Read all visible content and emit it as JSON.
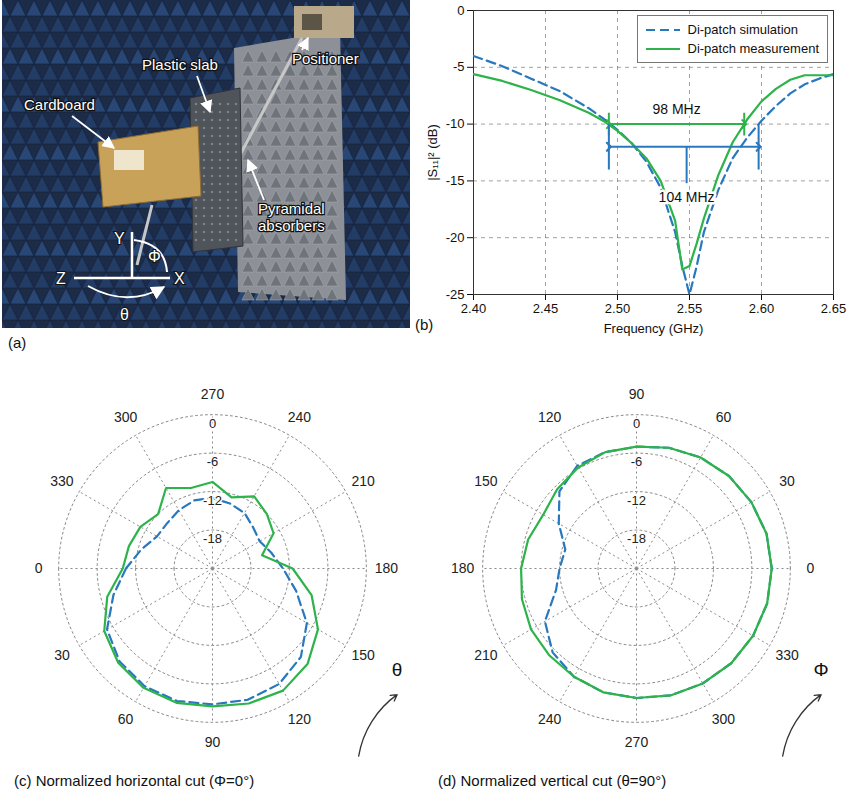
{
  "chart_data": [
    {
      "type": "photo",
      "title": "(a)",
      "labels": [
        "Cardboard",
        "Plastic slab",
        "Positioner",
        "Pyramidal absorbers"
      ],
      "axis_labels": [
        "Y",
        "Z",
        "X",
        "Φ",
        "θ"
      ]
    },
    {
      "type": "line",
      "title": "(b)",
      "x_label": "Frequency (GHz)",
      "y_label": "|S₁₁|² (dB)",
      "x": [
        2.4,
        2.42,
        2.44,
        2.46,
        2.48,
        2.49,
        2.5,
        2.51,
        2.52,
        2.53,
        2.54,
        2.545,
        2.55,
        2.555,
        2.56,
        2.57,
        2.58,
        2.59,
        2.6,
        2.61,
        2.62,
        2.63,
        2.64,
        2.65
      ],
      "series": [
        {
          "name": "Di-patch simulation",
          "color": "#2878c0",
          "line_style": "dashed",
          "values": [
            -4.0,
            -4.9,
            -6.0,
            -7.1,
            -8.6,
            -9.5,
            -10.5,
            -11.7,
            -13.3,
            -15.6,
            -19.5,
            -22.5,
            -25.0,
            -22.5,
            -19.5,
            -15.8,
            -13.0,
            -11.2,
            -9.7,
            -8.4,
            -7.3,
            -6.5,
            -6.0,
            -5.6
          ]
        },
        {
          "name": "Di-patch measurement",
          "color": "#2db34a",
          "line_style": "solid",
          "values": [
            -5.6,
            -6.2,
            -7.0,
            -7.9,
            -9.0,
            -9.7,
            -10.6,
            -11.7,
            -13.0,
            -15.0,
            -18.5,
            -22.8,
            -22.5,
            -20.5,
            -18.3,
            -14.5,
            -11.6,
            -9.6,
            -8.0,
            -6.9,
            -6.1,
            -5.7,
            -5.7,
            -5.7
          ]
        }
      ],
      "xlim": [
        2.4,
        2.65
      ],
      "xticks": [
        {
          "value": 2.4,
          "label": "2.40"
        },
        {
          "value": 2.45,
          "label": "2.45"
        },
        {
          "value": 2.5,
          "label": "2.50"
        },
        {
          "value": 2.55,
          "label": "2.55"
        },
        {
          "value": 2.6,
          "label": "2.60"
        },
        {
          "value": 2.65,
          "label": "2.65"
        }
      ],
      "ylim": [
        -25,
        0
      ],
      "yticks": [
        0,
        -5,
        -10,
        -15,
        -20,
        -25
      ],
      "grid": true,
      "legend": "top-right",
      "annotations": [
        {
          "text": "98 MHz",
          "color": "#2db34a",
          "x_start": 2.494,
          "x_end": 2.588,
          "y": -10,
          "y_bracket": [
            -9,
            -11
          ],
          "text_x": 2.541,
          "text_y": -8.7
        },
        {
          "text": "104 MHz",
          "color": "#2878c0",
          "x_start": 2.494,
          "x_end": 2.598,
          "y": -12,
          "y_bracket": [
            -10,
            -14
          ],
          "y_pointer": [
            -12,
            -15.2
          ],
          "text_x": 2.548,
          "text_y": -16.5
        }
      ]
    },
    {
      "type": "polar",
      "title": "(c) Normalized horizontal cut (Φ=0°)",
      "x": [
        0,
        15,
        30,
        45,
        60,
        75,
        90,
        105,
        120,
        135,
        150,
        165,
        180,
        195,
        210,
        225,
        240,
        255,
        270,
        285,
        300,
        315,
        330,
        345
      ],
      "series": [
        {
          "name": "Di-patch simulation",
          "color": "#2878c0",
          "line_style": "dashed",
          "values": [
            -10.5,
            -8.0,
            -5.0,
            -3.5,
            -2.8,
            -2.6,
            -2.8,
            -2.8,
            -3.2,
            -4.5,
            -7.0,
            -10.5,
            -13.0,
            -14.5,
            -15.5,
            -15.0,
            -14.0,
            -13.5,
            -13.0,
            -13.0,
            -13.5,
            -14.0,
            -14.0,
            -12.5
          ]
        },
        {
          "name": "Di-patch measurement",
          "color": "#2db34a",
          "line_style": "solid",
          "values": [
            -10.0,
            -7.0,
            -4.5,
            -3.2,
            -2.5,
            -2.3,
            -2.5,
            -2.2,
            -2.0,
            -3.0,
            -5.0,
            -8.0,
            -11.5,
            -16.0,
            -13.0,
            -12.0,
            -11.0,
            -12.5,
            -10.5,
            -11.0,
            -9.5,
            -12.0,
            -11.0,
            -10.5
          ]
        }
      ],
      "xlim": [
        0,
        360
      ],
      "xticks": [
        0,
        30,
        60,
        90,
        120,
        150,
        180,
        210,
        240,
        270,
        300,
        330
      ],
      "ylim": [
        -24,
        0
      ],
      "yticks": [
        0,
        -6,
        -12,
        -18
      ],
      "grid": true,
      "annotations": [
        {
          "text": "θ"
        }
      ]
    },
    {
      "type": "polar",
      "title": "(d) Normalized vertical cut (θ=90°)",
      "x": [
        0,
        15,
        30,
        45,
        60,
        75,
        90,
        105,
        120,
        135,
        150,
        165,
        180,
        195,
        210,
        225,
        240,
        255,
        270,
        285,
        300,
        315,
        330,
        345
      ],
      "series": [
        {
          "name": "Di-patch simulation",
          "color": "#2878c0",
          "line_style": "dashed",
          "values": [
            -2.9,
            -3.0,
            -3.3,
            -3.6,
            -4.0,
            -4.5,
            -5.0,
            -5.2,
            -5.5,
            -7.0,
            -10.0,
            -12.5,
            -12.0,
            -11.0,
            -7.5,
            -5.5,
            -4.5,
            -4.0,
            -3.8,
            -3.5,
            -3.3,
            -3.1,
            -3.0,
            -2.9
          ]
        },
        {
          "name": "Di-patch measurement",
          "color": "#2db34a",
          "line_style": "solid",
          "values": [
            -2.9,
            -3.0,
            -3.3,
            -3.6,
            -4.0,
            -4.5,
            -5.0,
            -5.2,
            -5.8,
            -6.5,
            -7.2,
            -6.5,
            -6.0,
            -5.5,
            -5.0,
            -4.8,
            -4.5,
            -4.0,
            -3.8,
            -3.5,
            -3.3,
            -3.1,
            -3.0,
            -2.9
          ]
        }
      ],
      "xlim": [
        0,
        360
      ],
      "xticks": [
        0,
        30,
        60,
        90,
        120,
        150,
        180,
        210,
        240,
        270,
        300,
        330
      ],
      "ylim": [
        -24,
        0
      ],
      "yticks": [
        0,
        -6,
        -12,
        -18
      ],
      "grid": true,
      "annotations": [
        {
          "text": "Φ"
        }
      ]
    }
  ]
}
